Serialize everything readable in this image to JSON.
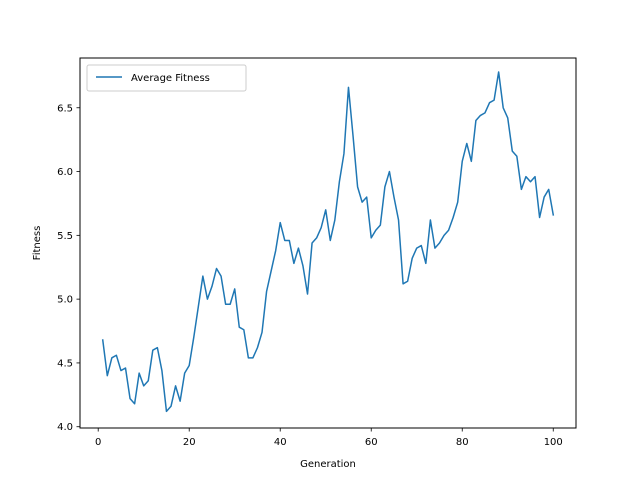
{
  "chart_data": {
    "type": "line",
    "xlabel": "Generation",
    "ylabel": "Fitness",
    "xlim": [
      -4,
      105
    ],
    "ylim": [
      3.99,
      6.89
    ],
    "xticks": [
      0,
      20,
      40,
      60,
      80,
      100
    ],
    "yticks": [
      4.0,
      4.5,
      5.0,
      5.5,
      6.0,
      6.5
    ],
    "xtick_labels": [
      "0",
      "20",
      "40",
      "60",
      "80",
      "100"
    ],
    "ytick_labels": [
      "4.0",
      "4.5",
      "5.0",
      "5.5",
      "6.0",
      "6.5"
    ],
    "grid": false,
    "legend_position": "upper-left",
    "series": [
      {
        "name": "Average Fitness",
        "color": "#1f77b4",
        "x": [
          1,
          2,
          3,
          4,
          5,
          6,
          7,
          8,
          9,
          10,
          11,
          12,
          13,
          14,
          15,
          16,
          17,
          18,
          19,
          20,
          21,
          22,
          23,
          24,
          25,
          26,
          27,
          28,
          29,
          30,
          31,
          32,
          33,
          34,
          35,
          36,
          37,
          38,
          39,
          40,
          41,
          42,
          43,
          44,
          45,
          46,
          47,
          48,
          49,
          50,
          51,
          52,
          53,
          54,
          55,
          56,
          57,
          58,
          59,
          60,
          61,
          62,
          63,
          64,
          65,
          66,
          67,
          68,
          69,
          70,
          71,
          72,
          73,
          74,
          75,
          76,
          77,
          78,
          79,
          80,
          81,
          82,
          83,
          84,
          85,
          86,
          87,
          88,
          89,
          90,
          91,
          92,
          93,
          94,
          95,
          96,
          97,
          98,
          99,
          100
        ],
        "y": [
          4.68,
          4.4,
          4.54,
          4.56,
          4.44,
          4.46,
          4.22,
          4.18,
          4.42,
          4.32,
          4.36,
          4.6,
          4.62,
          4.44,
          4.12,
          4.16,
          4.32,
          4.2,
          4.42,
          4.48,
          4.7,
          4.94,
          5.18,
          5.0,
          5.1,
          5.24,
          5.18,
          4.96,
          4.96,
          5.08,
          4.78,
          4.76,
          4.54,
          4.54,
          4.62,
          4.74,
          5.06,
          5.22,
          5.38,
          5.6,
          5.46,
          5.46,
          5.28,
          5.4,
          5.26,
          5.04,
          5.44,
          5.48,
          5.56,
          5.7,
          5.46,
          5.62,
          5.92,
          6.14,
          6.66,
          6.28,
          5.88,
          5.76,
          5.8,
          5.48,
          5.54,
          5.58,
          5.88,
          6.0,
          5.8,
          5.62,
          5.12,
          5.14,
          5.32,
          5.4,
          5.42,
          5.28,
          5.62,
          5.4,
          5.44,
          5.5,
          5.54,
          5.64,
          5.76,
          6.08,
          6.22,
          6.08,
          6.4,
          6.44,
          6.46,
          6.54,
          6.56,
          6.78,
          6.5,
          6.42,
          6.16,
          6.12,
          5.86,
          5.96,
          5.92,
          5.96,
          5.64,
          5.8,
          5.86,
          5.66
        ]
      }
    ]
  }
}
